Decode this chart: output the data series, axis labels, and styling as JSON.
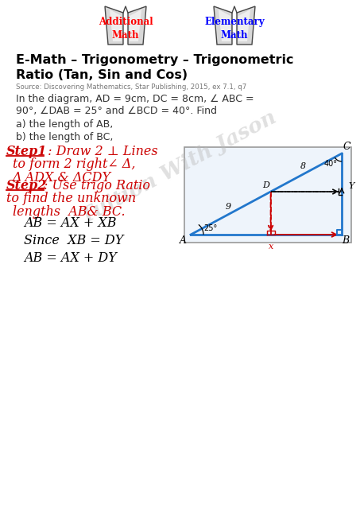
{
  "title": "E-Math – Trigonometry – Trigonometric\nRatio (Tan, Sin and Cos)",
  "source": "Source: Discovering Mathematics, Star Publishing, 2015, ex 7.1, q7",
  "problem_line1": "In the diagram, AD = 9cm, DC = 8cm, ∠ ABC =",
  "problem_line2": "90°, ∠DAB = 25° and ∠BCD = 40°. Find",
  "part_a": "a) the length of AB,",
  "part_b": "b) the length of BC,",
  "add_math_label": "Additional\nMath",
  "elem_math_label": "Elementary\nMath",
  "bg_color": "#ffffff",
  "diag_bg": "#eef4fb",
  "diag_border": "#aaaaaa",
  "blue": "#2277cc",
  "red": "#cc0000",
  "step1_parts": [
    "Step1",
    " : Draw 2 ⊥ Lines"
  ],
  "step1_line2": "to form 2 right∠ Δ,",
  "step1_line3": "Δ ADX & ΔCDY",
  "step2_parts": [
    "Step2",
    ": Use trigo Ratio"
  ],
  "step2_line2": "to find the unknown",
  "step2_line3": "lengths  AB& BC.",
  "eq1": "AB = AX + XB",
  "eq2": "Since  XB = DY",
  "eq3": "AB = AX + DY"
}
